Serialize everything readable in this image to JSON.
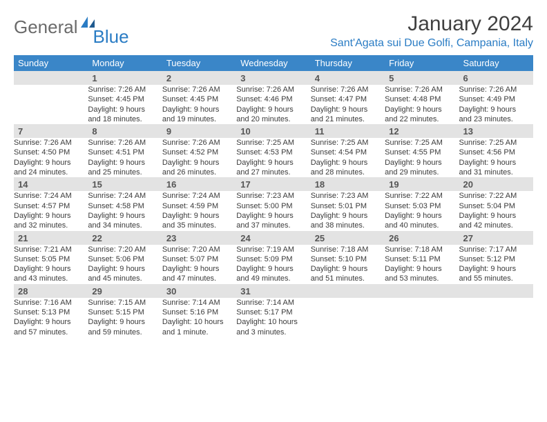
{
  "logo": {
    "word1": "General",
    "word2": "Blue"
  },
  "title": "January 2024",
  "location": "Sant'Agata sui Due Golfi, Campania, Italy",
  "headers": [
    "Sunday",
    "Monday",
    "Tuesday",
    "Wednesday",
    "Thursday",
    "Friday",
    "Saturday"
  ],
  "colors": {
    "header_bg": "#3a86c8",
    "daynum_bg": "#e3e3e3",
    "rule": "#2a7cc4",
    "logo_blue": "#2a7cc4",
    "text_gray": "#404040"
  },
  "weeks": [
    [
      null,
      {
        "n": "1",
        "sunrise": "Sunrise: 7:26 AM",
        "sunset": "Sunset: 4:45 PM",
        "day1": "Daylight: 9 hours",
        "day2": "and 18 minutes."
      },
      {
        "n": "2",
        "sunrise": "Sunrise: 7:26 AM",
        "sunset": "Sunset: 4:45 PM",
        "day1": "Daylight: 9 hours",
        "day2": "and 19 minutes."
      },
      {
        "n": "3",
        "sunrise": "Sunrise: 7:26 AM",
        "sunset": "Sunset: 4:46 PM",
        "day1": "Daylight: 9 hours",
        "day2": "and 20 minutes."
      },
      {
        "n": "4",
        "sunrise": "Sunrise: 7:26 AM",
        "sunset": "Sunset: 4:47 PM",
        "day1": "Daylight: 9 hours",
        "day2": "and 21 minutes."
      },
      {
        "n": "5",
        "sunrise": "Sunrise: 7:26 AM",
        "sunset": "Sunset: 4:48 PM",
        "day1": "Daylight: 9 hours",
        "day2": "and 22 minutes."
      },
      {
        "n": "6",
        "sunrise": "Sunrise: 7:26 AM",
        "sunset": "Sunset: 4:49 PM",
        "day1": "Daylight: 9 hours",
        "day2": "and 23 minutes."
      }
    ],
    [
      {
        "n": "7",
        "sunrise": "Sunrise: 7:26 AM",
        "sunset": "Sunset: 4:50 PM",
        "day1": "Daylight: 9 hours",
        "day2": "and 24 minutes."
      },
      {
        "n": "8",
        "sunrise": "Sunrise: 7:26 AM",
        "sunset": "Sunset: 4:51 PM",
        "day1": "Daylight: 9 hours",
        "day2": "and 25 minutes."
      },
      {
        "n": "9",
        "sunrise": "Sunrise: 7:26 AM",
        "sunset": "Sunset: 4:52 PM",
        "day1": "Daylight: 9 hours",
        "day2": "and 26 minutes."
      },
      {
        "n": "10",
        "sunrise": "Sunrise: 7:25 AM",
        "sunset": "Sunset: 4:53 PM",
        "day1": "Daylight: 9 hours",
        "day2": "and 27 minutes."
      },
      {
        "n": "11",
        "sunrise": "Sunrise: 7:25 AM",
        "sunset": "Sunset: 4:54 PM",
        "day1": "Daylight: 9 hours",
        "day2": "and 28 minutes."
      },
      {
        "n": "12",
        "sunrise": "Sunrise: 7:25 AM",
        "sunset": "Sunset: 4:55 PM",
        "day1": "Daylight: 9 hours",
        "day2": "and 29 minutes."
      },
      {
        "n": "13",
        "sunrise": "Sunrise: 7:25 AM",
        "sunset": "Sunset: 4:56 PM",
        "day1": "Daylight: 9 hours",
        "day2": "and 31 minutes."
      }
    ],
    [
      {
        "n": "14",
        "sunrise": "Sunrise: 7:24 AM",
        "sunset": "Sunset: 4:57 PM",
        "day1": "Daylight: 9 hours",
        "day2": "and 32 minutes."
      },
      {
        "n": "15",
        "sunrise": "Sunrise: 7:24 AM",
        "sunset": "Sunset: 4:58 PM",
        "day1": "Daylight: 9 hours",
        "day2": "and 34 minutes."
      },
      {
        "n": "16",
        "sunrise": "Sunrise: 7:24 AM",
        "sunset": "Sunset: 4:59 PM",
        "day1": "Daylight: 9 hours",
        "day2": "and 35 minutes."
      },
      {
        "n": "17",
        "sunrise": "Sunrise: 7:23 AM",
        "sunset": "Sunset: 5:00 PM",
        "day1": "Daylight: 9 hours",
        "day2": "and 37 minutes."
      },
      {
        "n": "18",
        "sunrise": "Sunrise: 7:23 AM",
        "sunset": "Sunset: 5:01 PM",
        "day1": "Daylight: 9 hours",
        "day2": "and 38 minutes."
      },
      {
        "n": "19",
        "sunrise": "Sunrise: 7:22 AM",
        "sunset": "Sunset: 5:03 PM",
        "day1": "Daylight: 9 hours",
        "day2": "and 40 minutes."
      },
      {
        "n": "20",
        "sunrise": "Sunrise: 7:22 AM",
        "sunset": "Sunset: 5:04 PM",
        "day1": "Daylight: 9 hours",
        "day2": "and 42 minutes."
      }
    ],
    [
      {
        "n": "21",
        "sunrise": "Sunrise: 7:21 AM",
        "sunset": "Sunset: 5:05 PM",
        "day1": "Daylight: 9 hours",
        "day2": "and 43 minutes."
      },
      {
        "n": "22",
        "sunrise": "Sunrise: 7:20 AM",
        "sunset": "Sunset: 5:06 PM",
        "day1": "Daylight: 9 hours",
        "day2": "and 45 minutes."
      },
      {
        "n": "23",
        "sunrise": "Sunrise: 7:20 AM",
        "sunset": "Sunset: 5:07 PM",
        "day1": "Daylight: 9 hours",
        "day2": "and 47 minutes."
      },
      {
        "n": "24",
        "sunrise": "Sunrise: 7:19 AM",
        "sunset": "Sunset: 5:09 PM",
        "day1": "Daylight: 9 hours",
        "day2": "and 49 minutes."
      },
      {
        "n": "25",
        "sunrise": "Sunrise: 7:18 AM",
        "sunset": "Sunset: 5:10 PM",
        "day1": "Daylight: 9 hours",
        "day2": "and 51 minutes."
      },
      {
        "n": "26",
        "sunrise": "Sunrise: 7:18 AM",
        "sunset": "Sunset: 5:11 PM",
        "day1": "Daylight: 9 hours",
        "day2": "and 53 minutes."
      },
      {
        "n": "27",
        "sunrise": "Sunrise: 7:17 AM",
        "sunset": "Sunset: 5:12 PM",
        "day1": "Daylight: 9 hours",
        "day2": "and 55 minutes."
      }
    ],
    [
      {
        "n": "28",
        "sunrise": "Sunrise: 7:16 AM",
        "sunset": "Sunset: 5:13 PM",
        "day1": "Daylight: 9 hours",
        "day2": "and 57 minutes."
      },
      {
        "n": "29",
        "sunrise": "Sunrise: 7:15 AM",
        "sunset": "Sunset: 5:15 PM",
        "day1": "Daylight: 9 hours",
        "day2": "and 59 minutes."
      },
      {
        "n": "30",
        "sunrise": "Sunrise: 7:14 AM",
        "sunset": "Sunset: 5:16 PM",
        "day1": "Daylight: 10 hours",
        "day2": "and 1 minute."
      },
      {
        "n": "31",
        "sunrise": "Sunrise: 7:14 AM",
        "sunset": "Sunset: 5:17 PM",
        "day1": "Daylight: 10 hours",
        "day2": "and 3 minutes."
      },
      null,
      null,
      null
    ]
  ]
}
